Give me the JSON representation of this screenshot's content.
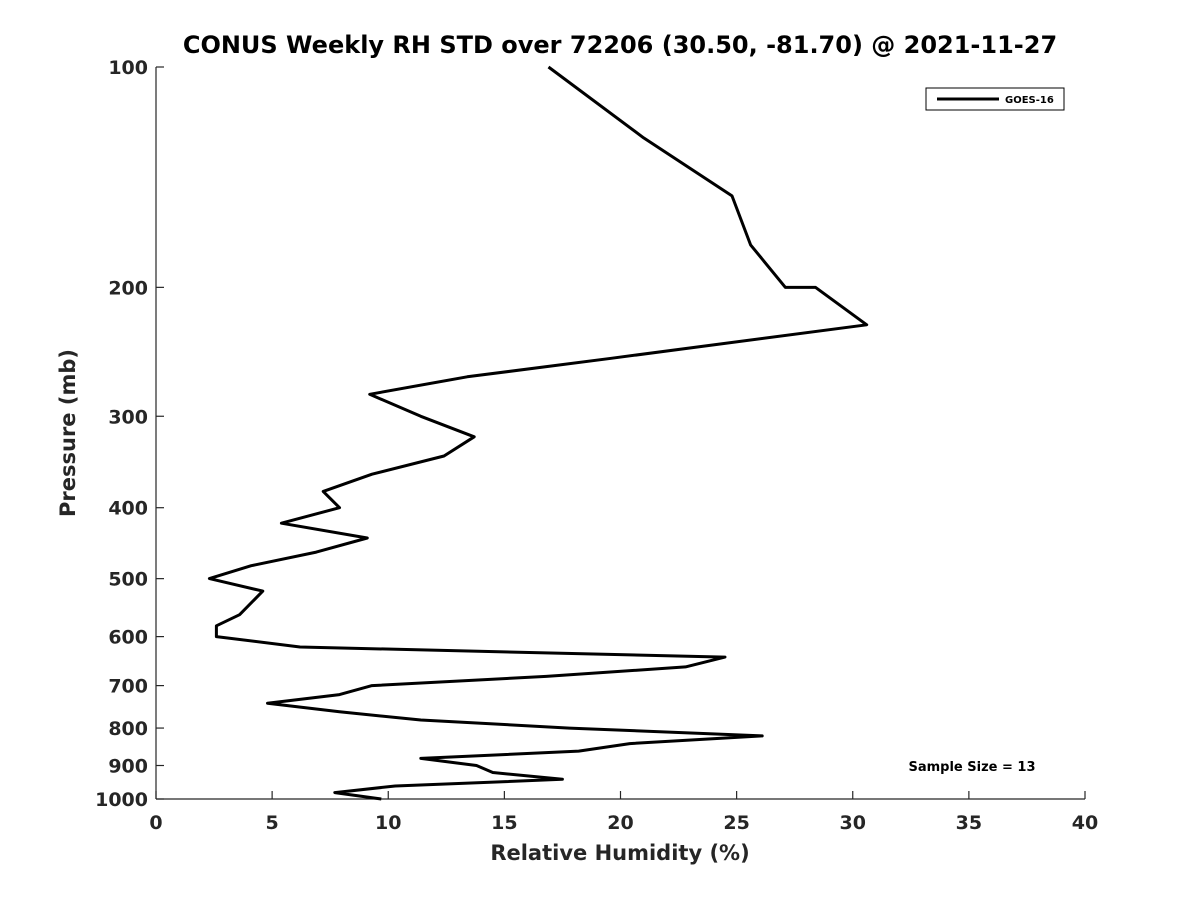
{
  "chart_data": {
    "type": "line",
    "title": "CONUS Weekly RH STD over 72206 (30.50, -81.70) @ 2021-11-27",
    "xlabel": "Relative Humidity (%)",
    "ylabel": "Pressure (mb)",
    "xlim": [
      0,
      40
    ],
    "ylim": [
      100,
      1000
    ],
    "y_scale": "log",
    "y_reversed": true,
    "x_ticks": [
      0,
      5,
      10,
      15,
      20,
      25,
      30,
      35,
      40
    ],
    "y_ticks": [
      100,
      200,
      300,
      400,
      500,
      600,
      700,
      800,
      900,
      1000
    ],
    "grid": false,
    "legend": "top-right",
    "annotation": "Sample Size = 13",
    "series": [
      {
        "name": "GOES-16",
        "color": "#000000",
        "points": [
          [
            16.9,
            100
          ],
          [
            21.0,
            125
          ],
          [
            24.8,
            150
          ],
          [
            25.6,
            175
          ],
          [
            27.1,
            200
          ],
          [
            28.4,
            200
          ],
          [
            30.6,
            225
          ],
          [
            19.6,
            250
          ],
          [
            13.4,
            265
          ],
          [
            9.2,
            280
          ],
          [
            11.4,
            300
          ],
          [
            13.7,
            320
          ],
          [
            12.4,
            340
          ],
          [
            9.3,
            360
          ],
          [
            7.2,
            380
          ],
          [
            7.9,
            400
          ],
          [
            5.4,
            420
          ],
          [
            9.1,
            440
          ],
          [
            6.9,
            460
          ],
          [
            4.1,
            480
          ],
          [
            2.3,
            500
          ],
          [
            4.6,
            520
          ],
          [
            3.6,
            560
          ],
          [
            2.6,
            580
          ],
          [
            2.6,
            600
          ],
          [
            6.2,
            620
          ],
          [
            24.5,
            640
          ],
          [
            22.8,
            660
          ],
          [
            16.8,
            680
          ],
          [
            9.3,
            700
          ],
          [
            7.9,
            720
          ],
          [
            4.8,
            740
          ],
          [
            7.9,
            760
          ],
          [
            11.4,
            780
          ],
          [
            17.8,
            800
          ],
          [
            26.1,
            820
          ],
          [
            20.4,
            840
          ],
          [
            18.2,
            860
          ],
          [
            11.4,
            880
          ],
          [
            13.8,
            900
          ],
          [
            14.5,
            920
          ],
          [
            17.5,
            940
          ],
          [
            10.3,
            960
          ],
          [
            7.7,
            980
          ],
          [
            9.7,
            1000
          ]
        ]
      }
    ]
  }
}
